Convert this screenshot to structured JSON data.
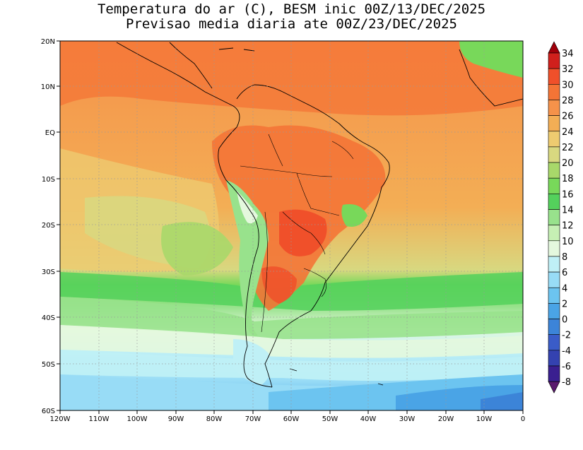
{
  "title": {
    "line1": "Temperatura do ar (C), BESM inic 00Z/13/DEC/2025",
    "line2": "Previsao media diaria ate 00Z/23/DEC/2025"
  },
  "axes": {
    "lat_labels": [
      "20N",
      "10N",
      "EQ",
      "10S",
      "20S",
      "30S",
      "40S",
      "50S",
      "60S"
    ],
    "lon_labels": [
      "120W",
      "110W",
      "100W",
      "90W",
      "80W",
      "70W",
      "60W",
      "50W",
      "40W",
      "30W",
      "20W",
      "10W",
      "0"
    ]
  },
  "colorbar": {
    "labels": [
      "34",
      "32",
      "30",
      "28",
      "26",
      "24",
      "22",
      "20",
      "18",
      "16",
      "14",
      "12",
      "10",
      "8",
      "6",
      "4",
      "2",
      "0",
      "-2",
      "-4",
      "-6",
      "-8"
    ],
    "colors": [
      "#a0000a",
      "#d0201c",
      "#f0502a",
      "#f47436",
      "#f5924a",
      "#f3ae55",
      "#eecb70",
      "#d8d880",
      "#a8d86a",
      "#78d85a",
      "#54d15c",
      "#98e28c",
      "#c6f0b4",
      "#e4f8de",
      "#bff0f6",
      "#98dcf6",
      "#6cc4f0",
      "#4aa4e6",
      "#3c84d8",
      "#3a5cc8",
      "#3442b0",
      "#3a1f90",
      "#4a1878",
      "#5a1a6e"
    ]
  },
  "chart_data": {
    "type": "heatmap",
    "variable": "Temperatura do ar (C)",
    "model": "BESM",
    "initialization": "00Z/13/DEC/2025",
    "valid_until": "00Z/23/DEC/2025",
    "x_range_deg_lon": [
      -120,
      0
    ],
    "y_range_deg_lat": [
      -60,
      20
    ],
    "color_levels_c": [
      -8,
      -6,
      -4,
      -2,
      0,
      2,
      4,
      6,
      8,
      10,
      12,
      14,
      16,
      18,
      20,
      22,
      24,
      26,
      28,
      30,
      32,
      34
    ],
    "grid": "dotted at 10 degree intervals"
  }
}
